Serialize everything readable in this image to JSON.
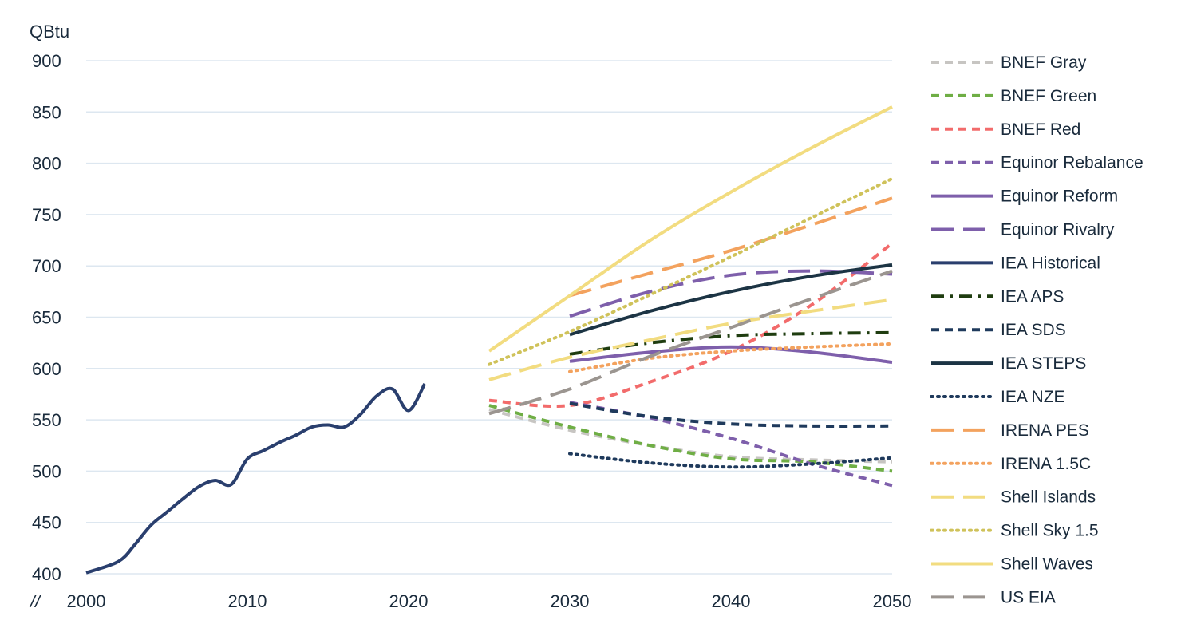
{
  "chart_data": {
    "type": "line",
    "ylabel": "QBtu",
    "xlim": [
      2000,
      2050
    ],
    "ylim": [
      400,
      900
    ],
    "x_ticks": [
      2000,
      2010,
      2020,
      2030,
      2040,
      2050
    ],
    "y_ticks": [
      400,
      450,
      500,
      550,
      600,
      650,
      700,
      750,
      800,
      850,
      900
    ],
    "grid": "horizontal",
    "legend_position": "right",
    "axis_break": "//",
    "series": [
      {
        "name": "BNEF Gray",
        "color": "#c7c5c2",
        "dash": "dash",
        "points": [
          [
            2025,
            560
          ],
          [
            2030,
            540
          ],
          [
            2035,
            525
          ],
          [
            2040,
            514
          ],
          [
            2045,
            511
          ],
          [
            2050,
            509
          ]
        ]
      },
      {
        "name": "BNEF Green",
        "color": "#6fae45",
        "dash": "dash",
        "points": [
          [
            2025,
            564
          ],
          [
            2030,
            543
          ],
          [
            2035,
            525
          ],
          [
            2040,
            512
          ],
          [
            2045,
            509
          ],
          [
            2050,
            500
          ]
        ]
      },
      {
        "name": "BNEF Red",
        "color": "#f26b6b",
        "dash": "dash",
        "points": [
          [
            2025,
            569
          ],
          [
            2030,
            564
          ],
          [
            2035,
            587
          ],
          [
            2040,
            617
          ],
          [
            2045,
            662
          ],
          [
            2050,
            722
          ]
        ]
      },
      {
        "name": "Equinor Rebalance",
        "color": "#7e5fab",
        "dash": "dash",
        "points": [
          [
            2030,
            567
          ],
          [
            2035,
            552
          ],
          [
            2040,
            532
          ],
          [
            2045,
            507
          ],
          [
            2050,
            486
          ]
        ]
      },
      {
        "name": "Equinor Reform",
        "color": "#7e5fab",
        "dash": "solid",
        "points": [
          [
            2030,
            607
          ],
          [
            2035,
            616
          ],
          [
            2040,
            621
          ],
          [
            2045,
            616
          ],
          [
            2050,
            606
          ]
        ]
      },
      {
        "name": "Equinor Rivalry",
        "color": "#7e5fab",
        "dash": "longdash",
        "points": [
          [
            2030,
            651
          ],
          [
            2035,
            675
          ],
          [
            2040,
            691
          ],
          [
            2045,
            695
          ],
          [
            2050,
            692
          ]
        ]
      },
      {
        "name": "IEA Historical",
        "color": "#2a3f6e",
        "dash": "solid",
        "points": [
          [
            2000,
            401
          ],
          [
            2002,
            412
          ],
          [
            2003,
            428
          ],
          [
            2004,
            447
          ],
          [
            2005,
            460
          ],
          [
            2006,
            473
          ],
          [
            2007,
            485
          ],
          [
            2008,
            491
          ],
          [
            2009,
            487
          ],
          [
            2010,
            512
          ],
          [
            2011,
            520
          ],
          [
            2012,
            528
          ],
          [
            2013,
            535
          ],
          [
            2014,
            543
          ],
          [
            2015,
            545
          ],
          [
            2016,
            543
          ],
          [
            2017,
            555
          ],
          [
            2018,
            573
          ],
          [
            2019,
            580
          ],
          [
            2020,
            559
          ],
          [
            2021,
            585
          ]
        ]
      },
      {
        "name": "IEA APS",
        "color": "#1f3d10",
        "dash": "dashdot",
        "points": [
          [
            2030,
            614
          ],
          [
            2035,
            625
          ],
          [
            2040,
            632
          ],
          [
            2045,
            634
          ],
          [
            2050,
            635
          ]
        ]
      },
      {
        "name": "IEA SDS",
        "color": "#1f3a5c",
        "dash": "dash",
        "points": [
          [
            2030,
            566
          ],
          [
            2035,
            553
          ],
          [
            2040,
            546
          ],
          [
            2045,
            544
          ],
          [
            2050,
            544
          ]
        ]
      },
      {
        "name": "IEA STEPS",
        "color": "#1c3444",
        "dash": "solid",
        "points": [
          [
            2030,
            633
          ],
          [
            2035,
            656
          ],
          [
            2040,
            675
          ],
          [
            2045,
            690
          ],
          [
            2050,
            701
          ]
        ]
      },
      {
        "name": "IEA NZE",
        "color": "#1f3a5c",
        "dash": "dot",
        "points": [
          [
            2030,
            517
          ],
          [
            2035,
            508
          ],
          [
            2040,
            504
          ],
          [
            2045,
            507
          ],
          [
            2050,
            513
          ]
        ]
      },
      {
        "name": "IRENA PES",
        "color": "#f3a25e",
        "dash": "longdash",
        "points": [
          [
            2030,
            671
          ],
          [
            2035,
            693
          ],
          [
            2040,
            715
          ],
          [
            2045,
            740
          ],
          [
            2050,
            766
          ]
        ]
      },
      {
        "name": "IRENA 1.5C",
        "color": "#f3a25e",
        "dash": "dot",
        "points": [
          [
            2030,
            597
          ],
          [
            2035,
            610
          ],
          [
            2040,
            617
          ],
          [
            2045,
            621
          ],
          [
            2050,
            624
          ]
        ]
      },
      {
        "name": "Shell Islands",
        "color": "#f2dc80",
        "dash": "longdash",
        "points": [
          [
            2025,
            589
          ],
          [
            2030,
            611
          ],
          [
            2035,
            628
          ],
          [
            2040,
            644
          ],
          [
            2045,
            656
          ],
          [
            2050,
            667
          ]
        ]
      },
      {
        "name": "Shell Sky 1.5",
        "color": "#cfc25a",
        "dash": "dot",
        "points": [
          [
            2025,
            604
          ],
          [
            2030,
            636
          ],
          [
            2035,
            672
          ],
          [
            2040,
            709
          ],
          [
            2045,
            747
          ],
          [
            2050,
            785
          ]
        ]
      },
      {
        "name": "Shell Waves",
        "color": "#f2dc80",
        "dash": "solid",
        "points": [
          [
            2025,
            617
          ],
          [
            2030,
            671
          ],
          [
            2035,
            725
          ],
          [
            2040,
            772
          ],
          [
            2045,
            815
          ],
          [
            2050,
            855
          ]
        ]
      },
      {
        "name": "US EIA",
        "color": "#9b9590",
        "dash": "longdash",
        "points": [
          [
            2025,
            556
          ],
          [
            2030,
            580
          ],
          [
            2035,
            612
          ],
          [
            2040,
            640
          ],
          [
            2045,
            668
          ],
          [
            2050,
            695
          ]
        ]
      }
    ]
  }
}
